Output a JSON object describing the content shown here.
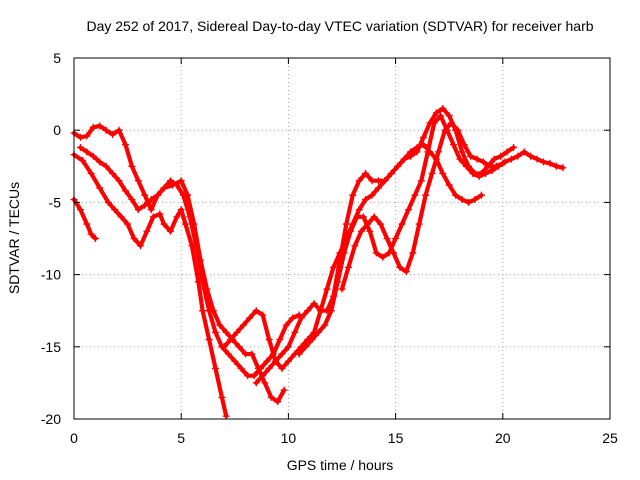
{
  "chart_data": {
    "type": "scatter",
    "title": "Day 252 of 2017, Sidereal Day-to-day VTEC variation (SDTVAR) for receiver harb",
    "xlabel": "GPS time / hours",
    "ylabel": "SDTVAR / TECUs",
    "xlim": [
      0,
      25
    ],
    "ylim": [
      -20,
      5
    ],
    "xticks": [
      "0",
      "5",
      "10",
      "15",
      "20",
      "25"
    ],
    "yticks": [
      "-20",
      "-15",
      "-10",
      "-5",
      "0",
      "5"
    ],
    "grid": true,
    "legend": "none",
    "marker": "+",
    "color": "#ff0000",
    "series": [
      {
        "name": "series-1",
        "x": [
          0.0,
          0.3,
          0.6,
          0.8,
          1.0
        ],
        "y": [
          -4.8,
          -5.5,
          -6.5,
          -7.2,
          -7.5
        ]
      },
      {
        "name": "series-2",
        "x": [
          0.0,
          0.4,
          0.8,
          1.2,
          1.6,
          1.9,
          2.2,
          2.5,
          2.8,
          3.1,
          3.4,
          3.7,
          4.0,
          4.2,
          4.5,
          4.8,
          5.0,
          5.2,
          5.5,
          5.8,
          6.0,
          6.3,
          6.6,
          6.9,
          7.1
        ],
        "y": [
          -1.7,
          -2.1,
          -3.0,
          -4.0,
          -5.0,
          -5.5,
          -6.0,
          -6.5,
          -7.5,
          -8.0,
          -7.0,
          -6.0,
          -5.8,
          -6.5,
          -7.0,
          -6.0,
          -5.5,
          -6.5,
          -8.0,
          -10.5,
          -12.5,
          -14.5,
          -16.5,
          -18.5,
          -19.8
        ]
      },
      {
        "name": "series-3",
        "x": [
          0.0,
          0.3,
          0.6,
          0.9,
          1.2,
          1.5,
          1.8,
          2.1,
          2.4,
          2.7,
          3.0,
          3.3,
          3.6,
          3.9,
          4.2,
          4.6,
          5.0,
          5.3,
          5.6,
          5.9,
          6.2,
          6.5,
          6.8,
          7.1,
          7.4,
          7.7,
          8.0,
          8.3,
          8.6,
          8.9,
          9.2,
          9.5,
          9.8
        ],
        "y": [
          -0.2,
          -0.5,
          -0.4,
          0.2,
          0.3,
          0.0,
          -0.3,
          0.0,
          -1.0,
          -2.5,
          -3.5,
          -4.5,
          -5.5,
          -4.5,
          -4.0,
          -3.8,
          -3.5,
          -4.5,
          -6.5,
          -9.0,
          -11.0,
          -12.5,
          -13.5,
          -14.0,
          -14.5,
          -15.0,
          -15.5,
          -15.5,
          -16.5,
          -17.5,
          -18.5,
          -18.8,
          -18.0
        ]
      },
      {
        "name": "series-4",
        "x": [
          0.3,
          0.6,
          0.9,
          1.2,
          1.5,
          1.8,
          2.1,
          2.4,
          2.7,
          3.0,
          3.3,
          3.6,
          3.9,
          4.2,
          4.5,
          4.8,
          5.1,
          5.4,
          5.7,
          6.0,
          6.3,
          6.6,
          6.9,
          7.2,
          7.5,
          7.8,
          8.1,
          8.4,
          8.7,
          9.0,
          9.3,
          9.6,
          9.9,
          10.2,
          10.5
        ],
        "y": [
          -1.2,
          -1.5,
          -1.8,
          -2.2,
          -2.5,
          -3.0,
          -3.5,
          -4.2,
          -4.8,
          -5.5,
          -5.2,
          -4.8,
          -4.5,
          -4.0,
          -3.5,
          -3.8,
          -4.5,
          -6.0,
          -8.0,
          -10.5,
          -12.5,
          -14.0,
          -15.0,
          -15.5,
          -16.0,
          -16.5,
          -17.0,
          -17.0,
          -16.5,
          -16.0,
          -15.5,
          -14.5,
          -13.5,
          -13.0,
          -12.8
        ]
      },
      {
        "name": "series-5",
        "x": [
          7.0,
          7.3,
          7.6,
          7.9,
          8.2,
          8.5,
          8.8,
          9.1,
          9.4,
          9.7,
          10.0,
          10.3,
          10.6,
          10.9,
          11.2,
          11.5,
          11.8,
          12.1,
          12.4,
          12.7,
          13.0,
          13.3,
          13.6,
          13.9,
          14.2,
          14.5,
          14.8,
          15.1,
          15.4,
          15.7,
          16.0,
          16.3,
          16.6,
          16.9,
          17.2,
          17.5,
          17.8,
          18.1,
          18.4,
          18.7,
          19.0
        ],
        "y": [
          -15.0,
          -14.5,
          -14.0,
          -13.5,
          -13.0,
          -12.5,
          -12.8,
          -14.5,
          -16.0,
          -16.5,
          -16.0,
          -15.5,
          -15.0,
          -14.5,
          -14.0,
          -12.5,
          -11.0,
          -9.5,
          -8.5,
          -7.5,
          -6.5,
          -5.5,
          -4.8,
          -4.5,
          -4.0,
          -3.5,
          -3.0,
          -2.5,
          -2.0,
          -1.5,
          -1.2,
          -1.0,
          -1.5,
          -2.0,
          -3.0,
          -3.8,
          -4.5,
          -4.8,
          -5.0,
          -4.8,
          -4.5
        ]
      },
      {
        "name": "series-6",
        "x": [
          8.5,
          8.8,
          9.1,
          9.4,
          9.7,
          10.0,
          10.3,
          10.6,
          10.9,
          11.2,
          11.5,
          11.8,
          12.1,
          12.4,
          12.7,
          13.0,
          13.3,
          13.6,
          13.9,
          14.2,
          14.5,
          14.8,
          15.1,
          15.4,
          15.7,
          16.0,
          16.3,
          16.6,
          16.9,
          17.2,
          17.5,
          17.8,
          18.1,
          18.4,
          18.7,
          19.0,
          19.3,
          19.6,
          19.9,
          20.2,
          20.5
        ],
        "y": [
          -17.5,
          -17.0,
          -16.5,
          -16.0,
          -15.5,
          -15.0,
          -14.0,
          -13.0,
          -12.5,
          -12.0,
          -12.5,
          -12.5,
          -11.5,
          -9.0,
          -6.5,
          -4.5,
          -3.5,
          -3.0,
          -3.5,
          -3.5,
          -3.5,
          -3.0,
          -2.5,
          -2.0,
          -1.8,
          -1.5,
          -0.5,
          0.5,
          1.2,
          1.5,
          1.0,
          0.0,
          -1.5,
          -2.5,
          -3.0,
          -3.0,
          -2.5,
          -2.0,
          -1.8,
          -1.5,
          -1.2
        ]
      },
      {
        "name": "series-7",
        "x": [
          10.5,
          10.8,
          11.1,
          11.4,
          11.7,
          12.0,
          12.3,
          12.6,
          12.9,
          13.2,
          13.5,
          13.8,
          14.1,
          14.4,
          14.7,
          15.0,
          15.3,
          15.6,
          15.9,
          16.2,
          16.5,
          16.8,
          17.1,
          17.4,
          17.7,
          18.0,
          18.3,
          18.6,
          18.9,
          19.2,
          19.5,
          19.8,
          20.1,
          20.4,
          20.7,
          21.0,
          21.3,
          21.6,
          21.9,
          22.2,
          22.5,
          22.8
        ],
        "y": [
          -15.5,
          -15.0,
          -14.5,
          -14.0,
          -13.5,
          -12.5,
          -10.5,
          -8.5,
          -7.0,
          -6.0,
          -6.0,
          -7.0,
          -8.5,
          -8.8,
          -8.5,
          -7.5,
          -6.5,
          -5.5,
          -4.5,
          -3.5,
          -1.5,
          0.5,
          1.0,
          0.0,
          -1.0,
          -2.0,
          -2.5,
          -3.0,
          -3.2,
          -3.0,
          -2.8,
          -2.5,
          -2.2,
          -2.0,
          -1.8,
          -1.5,
          -1.8,
          -2.0,
          -2.2,
          -2.3,
          -2.5,
          -2.6
        ]
      },
      {
        "name": "series-8",
        "x": [
          12.5,
          12.8,
          13.1,
          13.4,
          13.7,
          14.0,
          14.3,
          14.6,
          14.9,
          15.2,
          15.5,
          15.8,
          16.1,
          16.4,
          16.7,
          17.0,
          17.3,
          17.6,
          17.9,
          18.2,
          18.5,
          18.8,
          19.1,
          19.4,
          19.7,
          20.0
        ],
        "y": [
          -11.0,
          -9.5,
          -8.0,
          -7.0,
          -6.5,
          -6.0,
          -6.5,
          -7.5,
          -8.5,
          -9.5,
          -9.8,
          -8.5,
          -6.5,
          -4.5,
          -3.0,
          -1.5,
          0.0,
          0.5,
          0.0,
          -1.0,
          -1.8,
          -2.0,
          -2.2,
          -2.5,
          -2.5,
          -2.3
        ]
      }
    ]
  }
}
